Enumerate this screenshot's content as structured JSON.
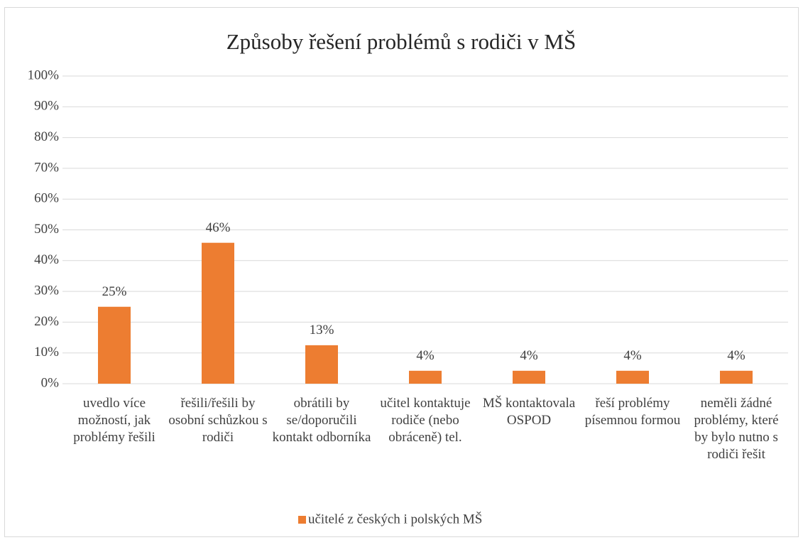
{
  "chart_data": {
    "type": "bar",
    "title": "Způsoby řešení problémů s rodiči v MŠ",
    "categories": [
      "uvedlo více možností, jak problémy řešili",
      "řešili/řešili by osobní schůzkou s rodiči",
      "obrátili by se/doporučili kontakt odborníka",
      "učitel kontaktuje rodiče (nebo obráceně) tel.",
      "MŠ kontaktovala OSPOD",
      "řeší problémy písemnou formou",
      "neměli žádné problémy, které by bylo nutno s rodiči řešit"
    ],
    "series": [
      {
        "name": "učitelé z českých i polských MŠ",
        "color": "#ed7d31",
        "values": [
          25,
          45.8,
          12.5,
          4.2,
          4.2,
          4.2,
          4.2
        ],
        "value_labels": [
          "25%",
          "46%",
          "13%",
          "4%",
          "4%",
          "4%",
          "4%"
        ]
      }
    ],
    "ylim": [
      0,
      100
    ],
    "yticks": [
      {
        "value": 0,
        "label": "0%"
      },
      {
        "value": 10,
        "label": "10%"
      },
      {
        "value": 20,
        "label": "20%"
      },
      {
        "value": 30,
        "label": "30%"
      },
      {
        "value": 40,
        "label": "40%"
      },
      {
        "value": 50,
        "label": "50%"
      },
      {
        "value": 60,
        "label": "60%"
      },
      {
        "value": 70,
        "label": "70%"
      },
      {
        "value": 80,
        "label": "80%"
      },
      {
        "value": 90,
        "label": "90%"
      },
      {
        "value": 100,
        "label": "100%"
      }
    ],
    "grid": true,
    "legend": "bottom"
  }
}
